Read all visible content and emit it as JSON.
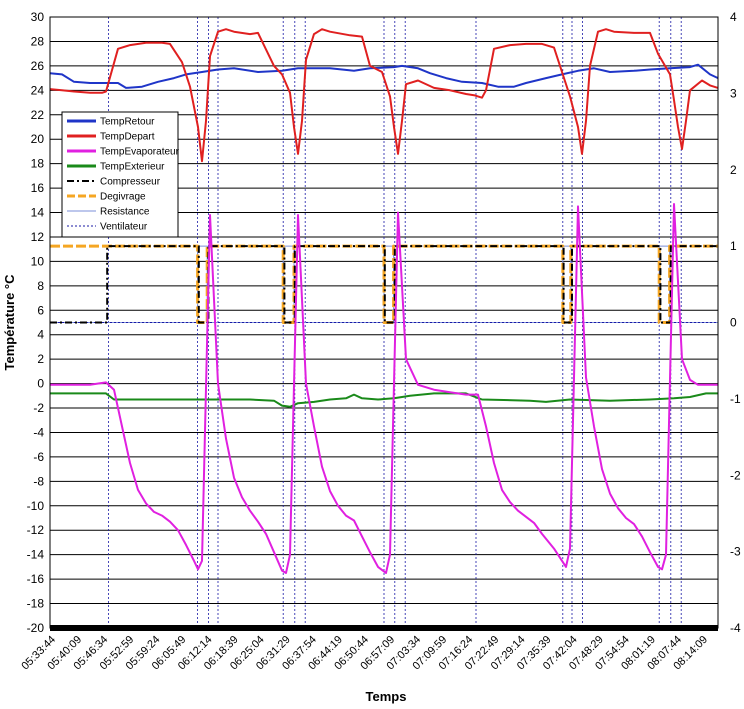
{
  "chart_data": {
    "type": "line",
    "title": "",
    "xlabel": "Temps",
    "ylabel": "Température °C",
    "ylim": [
      -20,
      30
    ],
    "y2lim": [
      -4,
      4
    ],
    "yticks": [
      -20,
      -18,
      -16,
      -14,
      -12,
      -10,
      -8,
      -6,
      -4,
      -2,
      0,
      2,
      4,
      6,
      8,
      10,
      12,
      14,
      16,
      18,
      20,
      22,
      24,
      26,
      28,
      30
    ],
    "y2ticks": [
      -4,
      -3,
      -2,
      -1,
      0,
      1,
      2,
      3,
      4
    ],
    "grid": true,
    "legend_position": "left",
    "x_tick_labels": [
      "05:33:44",
      "05:40:09",
      "05:46:34",
      "05:52:59",
      "05:59:24",
      "06:05:49",
      "06:12:14",
      "06:18:39",
      "06:25:04",
      "06:31:29",
      "06:37:54",
      "06:44:19",
      "06:50:44",
      "06:57:09",
      "07:03:34",
      "07:09:59",
      "07:16:24",
      "07:22:49",
      "07:29:14",
      "07:35:39",
      "07:42:04",
      "07:48:29",
      "07:54:54",
      "08:01:19",
      "08:07:44",
      "08:14:09"
    ],
    "x_range_minutes": [
      0,
      167
    ],
    "x_unit": "minutes after 05:33:44",
    "series": [
      {
        "name": "TempRetour",
        "axis": "left",
        "color": "#1f35c8",
        "points": [
          [
            0,
            25.4
          ],
          [
            3,
            25.3
          ],
          [
            6,
            24.7
          ],
          [
            10,
            24.6
          ],
          [
            17,
            24.6
          ],
          [
            19,
            24.2
          ],
          [
            23,
            24.3
          ],
          [
            27,
            24.7
          ],
          [
            31,
            25.0
          ],
          [
            34,
            25.3
          ],
          [
            38,
            25.5
          ],
          [
            42,
            25.7
          ],
          [
            46,
            25.8
          ],
          [
            52,
            25.5
          ],
          [
            58,
            25.6
          ],
          [
            62,
            25.8
          ],
          [
            70,
            25.8
          ],
          [
            76,
            25.6
          ],
          [
            80,
            25.8
          ],
          [
            86,
            25.9
          ],
          [
            88,
            26.0
          ],
          [
            92,
            25.8
          ],
          [
            95,
            25.4
          ],
          [
            99,
            25.0
          ],
          [
            103,
            24.7
          ],
          [
            108,
            24.6
          ],
          [
            112,
            24.3
          ],
          [
            116,
            24.3
          ],
          [
            119,
            24.6
          ],
          [
            124,
            25.0
          ],
          [
            128,
            25.3
          ],
          [
            132,
            25.6
          ],
          [
            136,
            25.8
          ],
          [
            140,
            25.5
          ],
          [
            146,
            25.6
          ],
          [
            150,
            25.7
          ],
          [
            155,
            25.8
          ],
          [
            160,
            25.9
          ],
          [
            162,
            26.1
          ],
          [
            165,
            25.3
          ],
          [
            167,
            25.0
          ]
        ]
      },
      {
        "name": "TempDepart",
        "axis": "left",
        "color": "#e02020",
        "points": [
          [
            0,
            24.1
          ],
          [
            3,
            24.0
          ],
          [
            6,
            23.9
          ],
          [
            10,
            23.8
          ],
          [
            13,
            23.8
          ],
          [
            14,
            23.9
          ],
          [
            17,
            27.4
          ],
          [
            20,
            27.7
          ],
          [
            24,
            27.9
          ],
          [
            28,
            27.9
          ],
          [
            30,
            27.8
          ],
          [
            33,
            26.3
          ],
          [
            35,
            24.3
          ],
          [
            37,
            21.0
          ],
          [
            38,
            18.2
          ],
          [
            39,
            21.5
          ],
          [
            40,
            26.8
          ],
          [
            42,
            28.8
          ],
          [
            44,
            29.0
          ],
          [
            46,
            28.8
          ],
          [
            50,
            28.6
          ],
          [
            52,
            28.7
          ],
          [
            56,
            26.0
          ],
          [
            58,
            25.3
          ],
          [
            60,
            23.8
          ],
          [
            61,
            21.0
          ],
          [
            62,
            18.8
          ],
          [
            63,
            21.5
          ],
          [
            64,
            26.5
          ],
          [
            66,
            28.6
          ],
          [
            68,
            29.0
          ],
          [
            70,
            28.8
          ],
          [
            75,
            28.5
          ],
          [
            78,
            28.4
          ],
          [
            80,
            26.0
          ],
          [
            83,
            25.5
          ],
          [
            85,
            23.5
          ],
          [
            86,
            21.0
          ],
          [
            87,
            18.8
          ],
          [
            88,
            21.5
          ],
          [
            89,
            24.5
          ],
          [
            92,
            24.8
          ],
          [
            96,
            24.2
          ],
          [
            100,
            24.0
          ],
          [
            104,
            23.7
          ],
          [
            106,
            23.6
          ],
          [
            108,
            23.4
          ],
          [
            109,
            24.0
          ],
          [
            111,
            27.4
          ],
          [
            115,
            27.7
          ],
          [
            119,
            27.8
          ],
          [
            123,
            27.8
          ],
          [
            126,
            27.5
          ],
          [
            128,
            25.5
          ],
          [
            130,
            23.5
          ],
          [
            132,
            21.0
          ],
          [
            133,
            18.8
          ],
          [
            134,
            21.5
          ],
          [
            135,
            26.0
          ],
          [
            137,
            28.8
          ],
          [
            139,
            29.0
          ],
          [
            141,
            28.8
          ],
          [
            146,
            28.7
          ],
          [
            150,
            28.7
          ],
          [
            152,
            27.0
          ],
          [
            155,
            25.3
          ],
          [
            156,
            23.2
          ],
          [
            157,
            21.0
          ],
          [
            158,
            19.2
          ],
          [
            159,
            21.5
          ],
          [
            160,
            24.0
          ],
          [
            163,
            24.8
          ],
          [
            165,
            24.4
          ],
          [
            167,
            24.2
          ]
        ]
      },
      {
        "name": "TempEvaporateur",
        "axis": "left",
        "color": "#e020e0",
        "points": [
          [
            0,
            -0.1
          ],
          [
            10,
            -0.1
          ],
          [
            14,
            0.1
          ],
          [
            16,
            -0.5
          ],
          [
            18,
            -3.5
          ],
          [
            20,
            -6.5
          ],
          [
            22,
            -8.7
          ],
          [
            24,
            -9.8
          ],
          [
            26,
            -10.5
          ],
          [
            28,
            -10.8
          ],
          [
            30,
            -11.3
          ],
          [
            32,
            -12.0
          ],
          [
            34,
            -13.2
          ],
          [
            36,
            -14.5
          ],
          [
            37,
            -15.2
          ],
          [
            38,
            -14.5
          ],
          [
            40,
            13.8
          ],
          [
            42,
            0.0
          ],
          [
            44,
            -4.5
          ],
          [
            46,
            -7.7
          ],
          [
            48,
            -9.3
          ],
          [
            50,
            -10.4
          ],
          [
            52,
            -11.3
          ],
          [
            54,
            -12.3
          ],
          [
            56,
            -13.8
          ],
          [
            58,
            -15.3
          ],
          [
            59,
            -15.5
          ],
          [
            60,
            -14.0
          ],
          [
            62,
            13.8
          ],
          [
            64,
            0.0
          ],
          [
            66,
            -3.5
          ],
          [
            68,
            -6.8
          ],
          [
            70,
            -8.8
          ],
          [
            72,
            -10.0
          ],
          [
            74,
            -10.8
          ],
          [
            76,
            -11.2
          ],
          [
            78,
            -12.5
          ],
          [
            80,
            -13.8
          ],
          [
            82,
            -15.0
          ],
          [
            84,
            -15.5
          ],
          [
            85,
            -14.0
          ],
          [
            87,
            14.0
          ],
          [
            89,
            2.0
          ],
          [
            92,
            -0.1
          ],
          [
            96,
            -0.5
          ],
          [
            100,
            -0.7
          ],
          [
            104,
            -0.9
          ],
          [
            107,
            -0.9
          ],
          [
            109,
            -3.5
          ],
          [
            111,
            -6.5
          ],
          [
            113,
            -8.7
          ],
          [
            115,
            -9.7
          ],
          [
            117,
            -10.4
          ],
          [
            119,
            -10.9
          ],
          [
            121,
            -11.4
          ],
          [
            123,
            -12.3
          ],
          [
            126,
            -13.5
          ],
          [
            128,
            -14.5
          ],
          [
            129,
            -15.0
          ],
          [
            130,
            -13.5
          ],
          [
            132,
            14.5
          ],
          [
            134,
            0.5
          ],
          [
            136,
            -3.5
          ],
          [
            138,
            -7.0
          ],
          [
            140,
            -9.0
          ],
          [
            142,
            -10.2
          ],
          [
            144,
            -11.0
          ],
          [
            146,
            -11.5
          ],
          [
            148,
            -12.5
          ],
          [
            150,
            -13.8
          ],
          [
            152,
            -15.0
          ],
          [
            153,
            -15.2
          ],
          [
            154,
            -14.0
          ],
          [
            156,
            14.7
          ],
          [
            158,
            2.0
          ],
          [
            160,
            0.3
          ],
          [
            162,
            -0.1
          ],
          [
            167,
            -0.1
          ]
        ]
      },
      {
        "name": "TempExterieur",
        "axis": "left",
        "color": "#1a8a1a",
        "points": [
          [
            0,
            -0.8
          ],
          [
            14,
            -0.8
          ],
          [
            16,
            -1.3
          ],
          [
            30,
            -1.3
          ],
          [
            50,
            -1.3
          ],
          [
            56,
            -1.4
          ],
          [
            58,
            -1.8
          ],
          [
            60,
            -1.9
          ],
          [
            62,
            -1.6
          ],
          [
            66,
            -1.5
          ],
          [
            70,
            -1.3
          ],
          [
            74,
            -1.2
          ],
          [
            76,
            -0.9
          ],
          [
            78,
            -1.2
          ],
          [
            82,
            -1.3
          ],
          [
            86,
            -1.2
          ],
          [
            90,
            -1.0
          ],
          [
            96,
            -0.8
          ],
          [
            104,
            -0.8
          ],
          [
            108,
            -1.3
          ],
          [
            120,
            -1.4
          ],
          [
            124,
            -1.5
          ],
          [
            130,
            -1.3
          ],
          [
            140,
            -1.4
          ],
          [
            150,
            -1.3
          ],
          [
            156,
            -1.2
          ],
          [
            160,
            -1.1
          ],
          [
            164,
            -0.8
          ],
          [
            167,
            -0.8
          ]
        ]
      },
      {
        "name": "Compresseur",
        "axis": "right",
        "color": "#000000",
        "style": "dash-dot",
        "points": [
          [
            0,
            0
          ],
          [
            14.3,
            0
          ],
          [
            14.3,
            1
          ],
          [
            37.2,
            1
          ],
          [
            37.2,
            0
          ],
          [
            39.6,
            0
          ],
          [
            39.6,
            1
          ],
          [
            58.6,
            1
          ],
          [
            58.6,
            0
          ],
          [
            61.2,
            0
          ],
          [
            61.2,
            1
          ],
          [
            83.7,
            1
          ],
          [
            83.7,
            0
          ],
          [
            86.2,
            0
          ],
          [
            86.2,
            1
          ],
          [
            128.4,
            1
          ],
          [
            128.4,
            0
          ],
          [
            130.5,
            0
          ],
          [
            130.5,
            1
          ],
          [
            152.6,
            1
          ],
          [
            152.6,
            0
          ],
          [
            155.2,
            0
          ],
          [
            155.2,
            1
          ],
          [
            167,
            1
          ]
        ]
      },
      {
        "name": "Degivrage",
        "axis": "right",
        "color": "#f5a623",
        "style": "dash",
        "points": [
          [
            0,
            1
          ],
          [
            36.9,
            1
          ],
          [
            36.9,
            0
          ],
          [
            39.3,
            0
          ],
          [
            39.3,
            1
          ],
          [
            58.3,
            1
          ],
          [
            58.3,
            0
          ],
          [
            61.0,
            0
          ],
          [
            61.0,
            1
          ],
          [
            83.5,
            1
          ],
          [
            83.5,
            0
          ],
          [
            85.9,
            0
          ],
          [
            85.9,
            1
          ],
          [
            128.2,
            1
          ],
          [
            128.2,
            0
          ],
          [
            130.2,
            0
          ],
          [
            130.2,
            1
          ],
          [
            152.3,
            1
          ],
          [
            152.3,
            0
          ],
          [
            154.9,
            0
          ],
          [
            154.9,
            1
          ],
          [
            167,
            1
          ]
        ]
      },
      {
        "name": "Resistance",
        "axis": "right",
        "color": "#7b8fd8",
        "style": "solid-thin",
        "points": [
          [
            0,
            0
          ],
          [
            36.9,
            0
          ],
          [
            36.9,
            1
          ],
          [
            39.3,
            1
          ],
          [
            39.3,
            0
          ],
          [
            58.3,
            0
          ],
          [
            58.3,
            1
          ],
          [
            61.0,
            1
          ],
          [
            61.0,
            0
          ],
          [
            83.5,
            0
          ],
          [
            83.5,
            1
          ],
          [
            85.9,
            1
          ],
          [
            85.9,
            0
          ],
          [
            128.2,
            0
          ],
          [
            128.2,
            1
          ],
          [
            130.2,
            1
          ],
          [
            130.2,
            0
          ],
          [
            152.3,
            0
          ],
          [
            152.3,
            1
          ],
          [
            154.9,
            1
          ],
          [
            154.9,
            0
          ],
          [
            167,
            0
          ]
        ]
      },
      {
        "name": "Ventilateur",
        "axis": "right",
        "color": "#1a1aa6",
        "style": "dotted",
        "points": [
          [
            0,
            0
          ],
          [
            167,
            0
          ]
        ]
      }
    ],
    "ventilateur_markers": [
      14.6,
      36.9,
      39.6,
      42.0,
      58.3,
      61.2,
      63.8,
      83.5,
      86.2,
      88.8,
      106.5,
      128.2,
      130.5,
      133.1,
      152.3,
      155.2,
      157.8
    ]
  }
}
